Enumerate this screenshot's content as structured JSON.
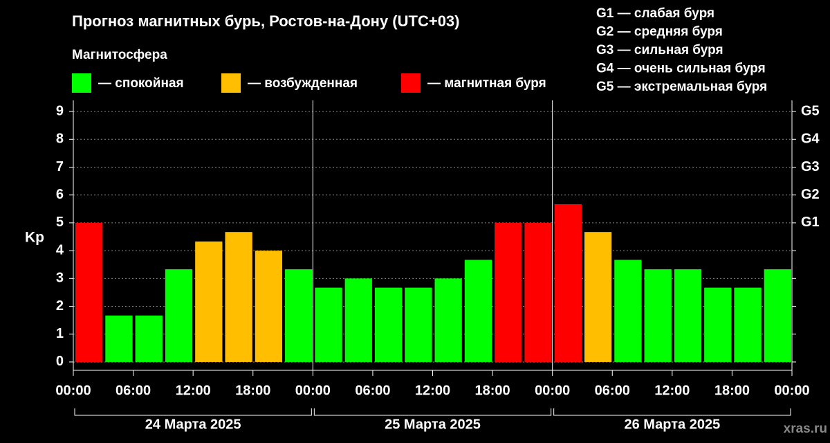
{
  "chart_data": {
    "type": "bar",
    "title": "Прогноз магнитных бурь, Ростов-на-Дону (UTC+03)",
    "legend_title": "Магнитосфера",
    "legend": [
      {
        "name": "— спокойная",
        "color": "#00ff00"
      },
      {
        "name": "— возбужденная",
        "color": "#ffbf00"
      },
      {
        "name": "— магнитная буря",
        "color": "#ff0000"
      }
    ],
    "g_legend": [
      "G1 — слабая буря",
      "G2 — средняя буря",
      "G3 — сильная буря",
      "G4 — очень сильная буря",
      "G5 — экстремальная буря"
    ],
    "ylabel": "Kp",
    "x": [
      0,
      3,
      6,
      9,
      12,
      15,
      18,
      21,
      24,
      27,
      30,
      33,
      36,
      39,
      42,
      45,
      48,
      51,
      54,
      57,
      60,
      63,
      66,
      69
    ],
    "values": [
      5,
      1.67,
      1.67,
      3.33,
      4.33,
      4.67,
      4,
      3.33,
      2.67,
      3,
      2.67,
      2.67,
      3,
      3.67,
      5,
      5,
      5.67,
      4.67,
      3.67,
      3.33,
      3.33,
      2.67,
      2.67,
      3.33
    ],
    "colors": [
      "#ff0000",
      "#00ff00",
      "#00ff00",
      "#00ff00",
      "#ffbf00",
      "#ffbf00",
      "#ffbf00",
      "#00ff00",
      "#00ff00",
      "#00ff00",
      "#00ff00",
      "#00ff00",
      "#00ff00",
      "#00ff00",
      "#ff0000",
      "#ff0000",
      "#ff0000",
      "#ffbf00",
      "#00ff00",
      "#00ff00",
      "#00ff00",
      "#00ff00",
      "#00ff00",
      "#00ff00"
    ],
    "xlim": [
      0,
      72
    ],
    "xticks": [
      {
        "value": 0,
        "label": "00:00"
      },
      {
        "value": 6,
        "label": "06:00"
      },
      {
        "value": 12,
        "label": "12:00"
      },
      {
        "value": 18,
        "label": "18:00"
      },
      {
        "value": 24,
        "label": "00:00"
      },
      {
        "value": 30,
        "label": "06:00"
      },
      {
        "value": 36,
        "label": "12:00"
      },
      {
        "value": 42,
        "label": "18:00"
      },
      {
        "value": 48,
        "label": "00:00"
      },
      {
        "value": 54,
        "label": "06:00"
      },
      {
        "value": 60,
        "label": "12:00"
      },
      {
        "value": 66,
        "label": "18:00"
      },
      {
        "value": 72,
        "label": "00:00"
      }
    ],
    "days": [
      {
        "label": "24 Марта 2025",
        "start": 0,
        "end": 24
      },
      {
        "label": "25 Марта 2025",
        "start": 24,
        "end": 48
      },
      {
        "label": "26 Марта 2025",
        "start": 48,
        "end": 72
      }
    ],
    "ylim": [
      -0.3,
      9.4
    ],
    "yticks": [
      0,
      1,
      2,
      3,
      4,
      5,
      6,
      7,
      8,
      9
    ],
    "y2lim": [
      -0.3,
      9.4
    ],
    "y2ticks": [
      {
        "value": 5,
        "label": "G1"
      },
      {
        "value": 6,
        "label": "G2"
      },
      {
        "value": 7,
        "label": "G3"
      },
      {
        "value": 8,
        "label": "G4"
      },
      {
        "value": 9,
        "label": "G5"
      }
    ],
    "grid": true,
    "watermark": "xras.ru"
  }
}
